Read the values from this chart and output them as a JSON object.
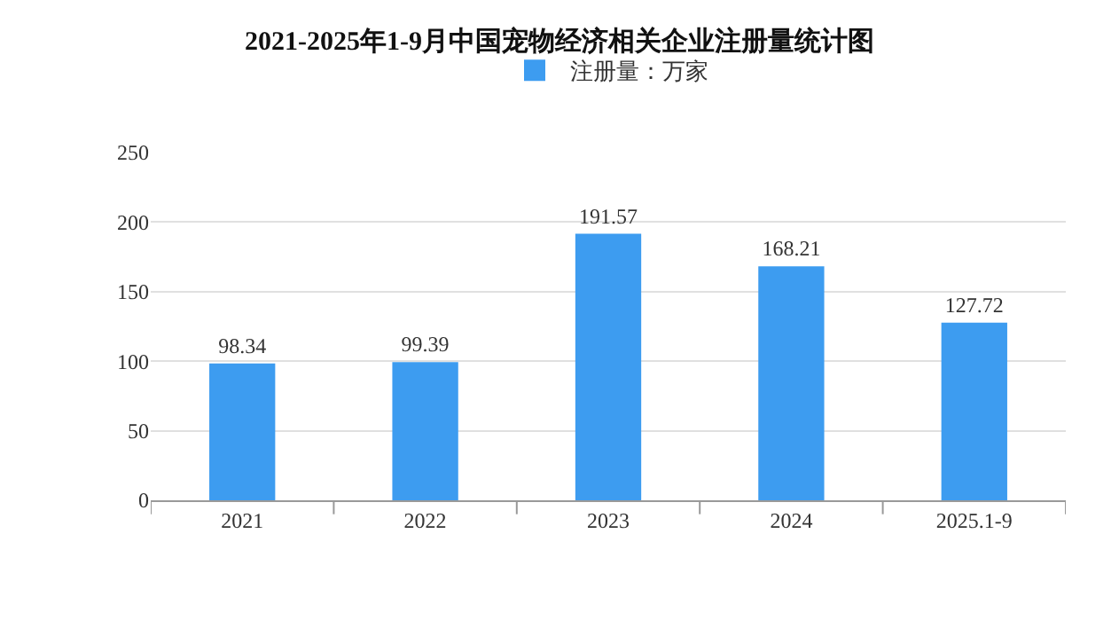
{
  "chart_data": {
    "type": "bar",
    "title": "2021-2025年1-9月中国宠物经济相关企业注册量统计图",
    "categories": [
      "2021",
      "2022",
      "2023",
      "2024",
      "2025.1-9"
    ],
    "series": [
      {
        "name": "注册量：万家",
        "color": "#3d9cf0",
        "values": [
          98.34,
          99.39,
          191.57,
          168.21,
          127.72
        ]
      }
    ],
    "ylim": [
      0,
      250
    ],
    "yticks": [
      0,
      50,
      100,
      150,
      200,
      250
    ],
    "grid": "y",
    "legend": "top",
    "data_labels": true
  }
}
